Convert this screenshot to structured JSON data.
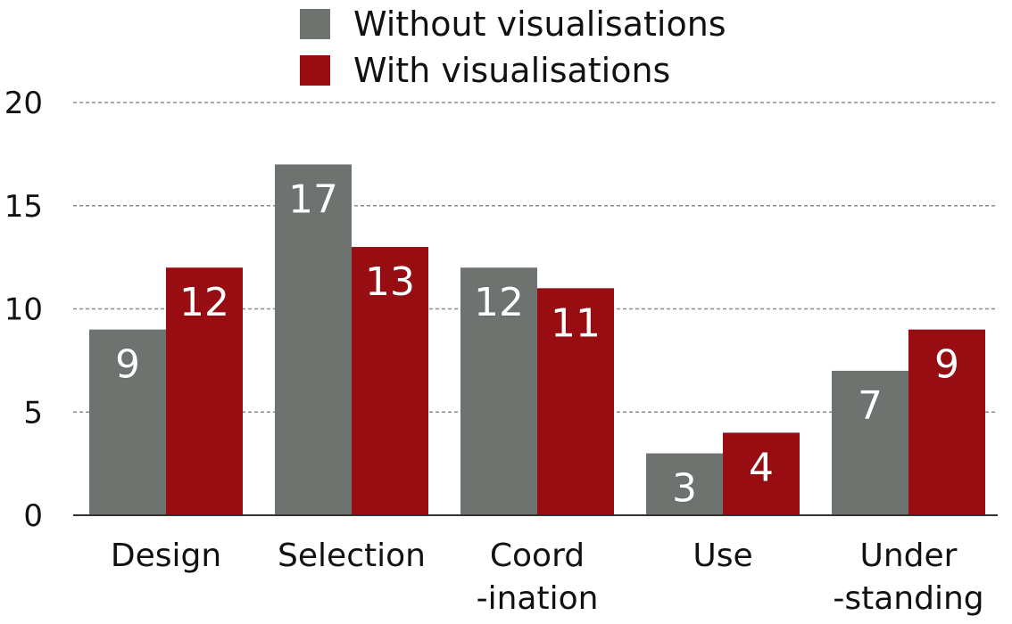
{
  "colors": {
    "without": "#6e7370",
    "with": "#980d12",
    "grid": "#8a8a8a",
    "axis": "#333333",
    "data_label": "#ffffff"
  },
  "legend": {
    "placement": "top-center",
    "items": [
      {
        "label": "Without visualisations",
        "color": "#6e7370"
      },
      {
        "label": "With visualisations",
        "color": "#980d12"
      }
    ]
  },
  "chart_data": {
    "type": "bar",
    "title": "",
    "xlabel": "",
    "ylabel": "",
    "ylim": [
      0,
      20
    ],
    "yticks": [
      "0",
      "5",
      "10",
      "15",
      "20"
    ],
    "grid": true,
    "categories": [
      [
        "Design"
      ],
      [
        "Selection"
      ],
      [
        "Coord",
        "-ination"
      ],
      [
        "Use"
      ],
      [
        "Under",
        "-standing"
      ]
    ],
    "series": [
      {
        "name": "Without visualisations",
        "color": "#6e7370",
        "values": [
          9,
          17,
          12,
          3,
          7
        ]
      },
      {
        "name": "With visualisations",
        "color": "#980d12",
        "values": [
          12,
          13,
          11,
          4,
          9
        ]
      }
    ]
  }
}
